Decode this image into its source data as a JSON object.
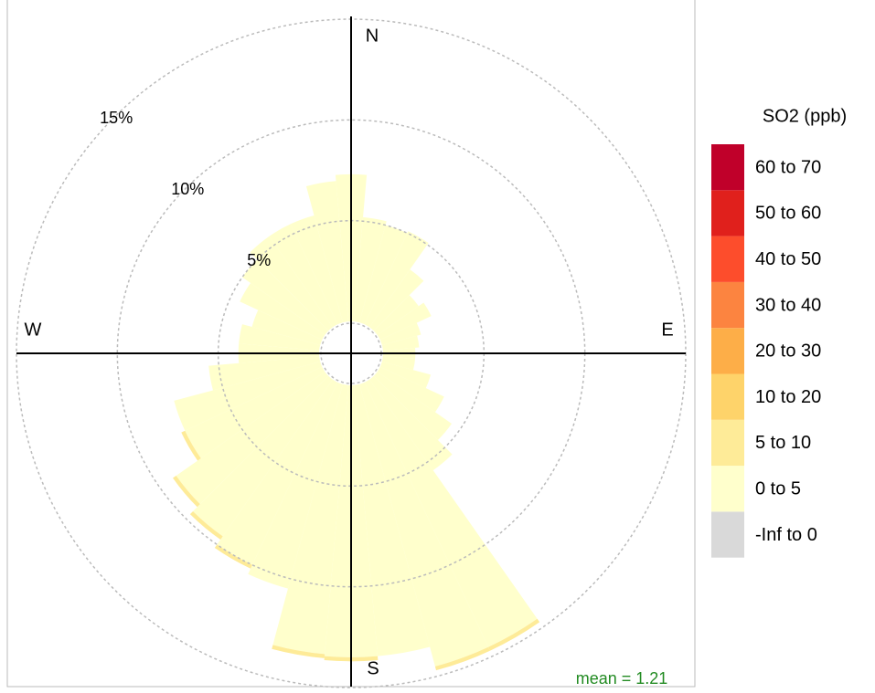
{
  "chart_data": {
    "type": "pollution-rose",
    "legend_title": "SO2 (ppb)",
    "compass": [
      "N",
      "E",
      "S",
      "W"
    ],
    "annotation": "mean = 1.21",
    "directions": [
      0,
      10,
      20,
      30,
      40,
      50,
      60,
      70,
      80,
      90,
      100,
      110,
      120,
      130,
      140,
      150,
      160,
      170,
      180,
      190,
      200,
      210,
      220,
      230,
      240,
      250,
      260,
      270,
      280,
      290,
      300,
      310,
      320,
      330,
      340,
      350
    ],
    "rlim": [
      0,
      15
    ],
    "rticks": [
      {
        "value": 5,
        "label": "5%"
      },
      {
        "value": 10,
        "label": "10%"
      },
      {
        "value": 15,
        "label": "15%"
      }
    ],
    "grid": true,
    "series": [
      {
        "name": "-Inf to 0",
        "color": "#d9d9d9",
        "values": [
          0,
          0,
          0,
          0,
          0,
          0,
          0,
          0,
          0,
          0,
          0,
          0,
          0,
          0,
          0,
          0,
          0,
          0,
          0,
          0,
          0,
          0,
          0,
          0,
          0,
          0,
          0,
          0,
          0,
          0,
          0,
          0,
          0,
          0,
          0,
          0
        ]
      },
      {
        "name": "0 to 5",
        "color": "#ffffcc",
        "values": [
          7.3,
          5.2,
          5.0,
          5.1,
          3.5,
          2.5,
          2.8,
          2.0,
          1.8,
          1.6,
          1.6,
          2.5,
          3.5,
          4.5,
          5.5,
          14.5,
          14.5,
          13.5,
          13.5,
          13.4,
          10.5,
          10.0,
          9.5,
          9.0,
          7.5,
          7.5,
          5.5,
          4.0,
          4.0,
          3.5,
          4.5,
          5.0,
          5.5,
          5.5,
          5.5,
          7.0
        ]
      },
      {
        "name": "5 to 10",
        "color": "#feeb98",
        "values": [
          0,
          0,
          0,
          0,
          0,
          0,
          0,
          0,
          0,
          0,
          0,
          0,
          0,
          0,
          0,
          0.2,
          0.2,
          0,
          0.2,
          0.2,
          0,
          0.2,
          0.2,
          0.2,
          0.2,
          0,
          0,
          0,
          0,
          0,
          0,
          0,
          0,
          0,
          0,
          0
        ]
      },
      {
        "name": "10 to 20",
        "color": "#fed36a",
        "values": [
          0,
          0,
          0,
          0,
          0,
          0,
          0,
          0,
          0,
          0,
          0,
          0,
          0,
          0,
          0,
          0,
          0,
          0,
          0,
          0,
          0,
          0,
          0,
          0,
          0,
          0,
          0,
          0,
          0,
          0,
          0,
          0,
          0,
          0,
          0,
          0
        ]
      },
      {
        "name": "20 to 30",
        "color": "#fdae48",
        "values": [
          0,
          0,
          0,
          0,
          0,
          0,
          0,
          0,
          0,
          0,
          0,
          0,
          0,
          0,
          0,
          0,
          0,
          0,
          0,
          0,
          0,
          0,
          0,
          0,
          0,
          0,
          0,
          0,
          0,
          0,
          0,
          0,
          0,
          0,
          0,
          0
        ]
      },
      {
        "name": "30 to 40",
        "color": "#fc8440",
        "values": [
          0,
          0,
          0,
          0,
          0,
          0,
          0,
          0,
          0,
          0,
          0,
          0,
          0,
          0,
          0,
          0,
          0,
          0,
          0,
          0,
          0,
          0,
          0,
          0,
          0,
          0,
          0,
          0,
          0,
          0,
          0,
          0,
          0,
          0,
          0,
          0
        ]
      },
      {
        "name": "40 to 50",
        "color": "#fd4d2c",
        "values": [
          0,
          0,
          0,
          0,
          0,
          0,
          0,
          0,
          0,
          0,
          0,
          0,
          0,
          0,
          0,
          0,
          0,
          0,
          0,
          0,
          0,
          0,
          0,
          0,
          0,
          0,
          0,
          0,
          0,
          0,
          0,
          0,
          0,
          0,
          0,
          0
        ]
      },
      {
        "name": "50 to 60",
        "color": "#e0201c",
        "values": [
          0,
          0,
          0,
          0,
          0,
          0,
          0,
          0,
          0,
          0,
          0,
          0,
          0,
          0,
          0,
          0,
          0,
          0,
          0,
          0,
          0,
          0,
          0,
          0,
          0,
          0,
          0,
          0,
          0,
          0,
          0,
          0,
          0,
          0,
          0,
          0
        ]
      },
      {
        "name": "60 to 70",
        "color": "#c0002a",
        "values": [
          0,
          0,
          0,
          0,
          0,
          0,
          0,
          0,
          0,
          0,
          0,
          0,
          0,
          0,
          0,
          0,
          0,
          0,
          0,
          0,
          0,
          0,
          0,
          0,
          0,
          0,
          0,
          0,
          0,
          0,
          0,
          0,
          0,
          0,
          0,
          0
        ]
      }
    ]
  }
}
